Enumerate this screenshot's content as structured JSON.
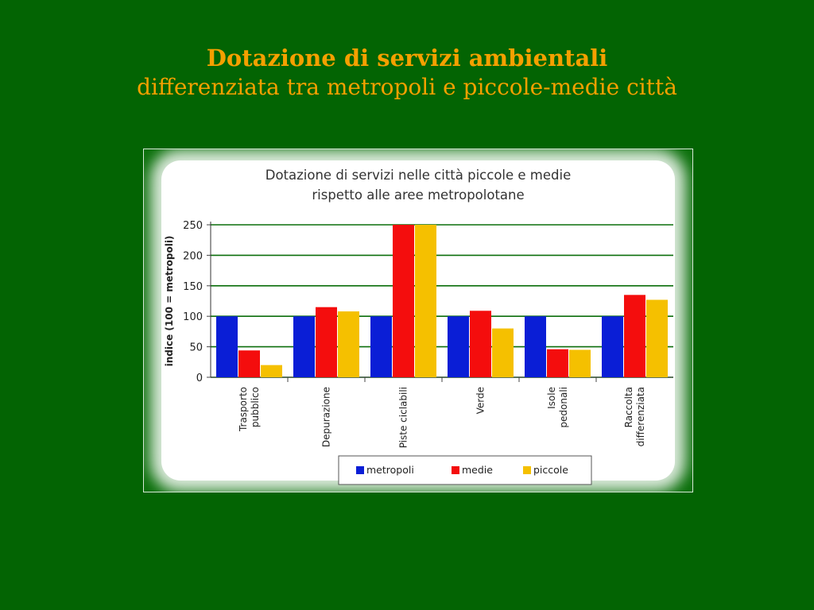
{
  "slide": {
    "title": "Dotazione di servizi ambientali",
    "subtitle": "differenziata tra metropoli e piccole-medie città"
  },
  "colors": {
    "background": "#036403",
    "title": "#f5a000",
    "metropoli": "#0a1ed6",
    "medie": "#f40d0d",
    "piccole": "#f5c000"
  },
  "chart_data": {
    "type": "bar",
    "title_lines": [
      "Dotazione di servizi nelle città piccole e medie",
      "rispetto alle aree metropolotane"
    ],
    "ylabel": "indice (100 = metropoli)",
    "xlabel": "",
    "ylim": [
      0,
      250
    ],
    "yticks": [
      0,
      50,
      100,
      150,
      200,
      250
    ],
    "grid": true,
    "legend_position": "bottom",
    "categories": [
      [
        "Trasporto",
        "pubblico"
      ],
      [
        "Depurazione"
      ],
      [
        "Piste ciclabili"
      ],
      [
        "Verde"
      ],
      [
        "Isole",
        "pedonali"
      ],
      [
        "Raccolta",
        "differenziata"
      ]
    ],
    "series": [
      {
        "name": "metropoli",
        "color": "#0a1ed6",
        "values": [
          100,
          100,
          100,
          100,
          100,
          100
        ]
      },
      {
        "name": "medie",
        "color": "#f40d0d",
        "values": [
          44,
          115,
          250,
          109,
          46,
          135
        ]
      },
      {
        "name": "piccole",
        "color": "#f5c000",
        "values": [
          20,
          108,
          250,
          80,
          45,
          127
        ]
      }
    ]
  }
}
